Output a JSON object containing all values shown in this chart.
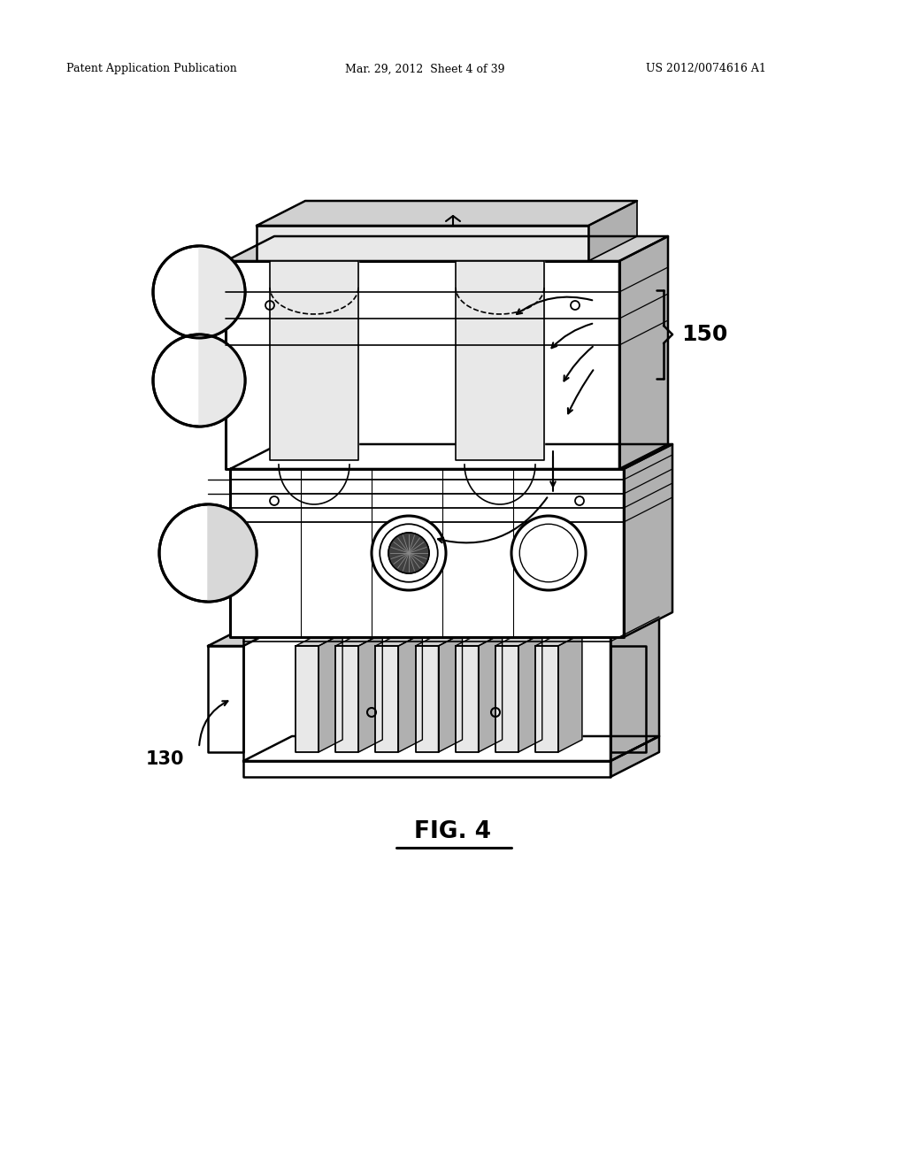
{
  "header_left": "Patent Application Publication",
  "header_mid": "Mar. 29, 2012  Sheet 4 of 39",
  "header_right": "US 2012/0074616 A1",
  "fig_label": "FIG. 4",
  "bg_color": "#ffffff",
  "line_color": "#000000",
  "text_color": "#000000",
  "gray_light": "#e8e8e8",
  "gray_mid": "#d0d0d0",
  "gray_dark": "#b0b0b0"
}
